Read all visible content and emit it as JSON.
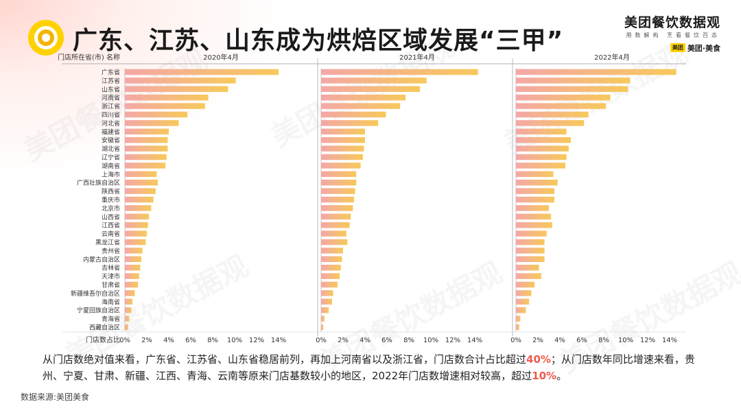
{
  "header": {
    "title": "广东、江苏、山东成为烘焙区域发展“三甲”",
    "brand_main": "美团餐饮数据观",
    "brand_sub": "用数解构 烹看餐饮百态",
    "brand_logo_badge": "美团",
    "brand_logo_text": "美团·美食"
  },
  "colors": {
    "bar_start": "#f4a7a7",
    "bar_end": "#f7c95b",
    "highlight": "#f05a4a",
    "icon_outer": "#ffd100",
    "icon_inner": "#f08a00"
  },
  "chart_data": {
    "type": "bar",
    "orientation": "horizontal",
    "y_header": "门店所在省(市) 名称",
    "x_header": "门店数占比",
    "categories": [
      "广东省",
      "江苏省",
      "山东省",
      "河南省",
      "浙江省",
      "四川省",
      "河北省",
      "福建省",
      "安徽省",
      "湖北省",
      "辽宁省",
      "湖南省",
      "上海市",
      "广西壮族自治区",
      "陕西省",
      "重庆市",
      "北京市",
      "山西省",
      "江西省",
      "云南省",
      "黑龙江省",
      "贵州省",
      "内蒙古自治区",
      "吉林省",
      "天津市",
      "甘肃省",
      "新疆维吾尔自治区",
      "海南省",
      "宁夏回族自治区",
      "青海省",
      "西藏自治区"
    ],
    "xlim": [
      0,
      15
    ],
    "ticks": [
      0,
      2,
      4,
      6,
      8,
      10,
      12,
      14
    ],
    "tick_labels": [
      "0%",
      "2%",
      "4%",
      "6%",
      "8%",
      "10%",
      "12%",
      "14%"
    ],
    "panels": [
      {
        "title": "2020年4月",
        "values": [
          14.0,
          10.1,
          9.4,
          7.6,
          7.3,
          5.7,
          4.9,
          4.0,
          3.9,
          3.9,
          3.8,
          3.7,
          2.9,
          3.0,
          2.8,
          2.6,
          2.4,
          2.2,
          2.1,
          2.0,
          1.9,
          1.6,
          1.5,
          1.4,
          1.3,
          1.2,
          0.9,
          0.7,
          0.6,
          0.4,
          0.3
        ]
      },
      {
        "title": "2021年4月",
        "values": [
          14.3,
          9.6,
          9.0,
          7.7,
          7.2,
          5.9,
          5.2,
          4.0,
          4.0,
          3.9,
          3.8,
          3.6,
          3.2,
          3.2,
          3.1,
          3.0,
          2.9,
          2.7,
          2.6,
          2.3,
          2.4,
          2.0,
          1.9,
          1.8,
          1.7,
          1.5,
          1.1,
          1.0,
          0.7,
          0.3,
          0.2
        ]
      },
      {
        "title": "2022年4月",
        "values": [
          14.6,
          10.4,
          10.2,
          8.6,
          8.2,
          6.6,
          6.2,
          4.6,
          5.0,
          4.8,
          4.6,
          4.5,
          3.4,
          3.8,
          3.5,
          3.5,
          3.0,
          3.2,
          3.3,
          2.8,
          2.6,
          2.6,
          2.6,
          2.1,
          2.3,
          1.7,
          1.4,
          1.2,
          0.9,
          0.4,
          0.3
        ]
      }
    ]
  },
  "description": {
    "p1": "从门店数绝对值来看，广东省、江苏省、山东省稳居前列，再加上河南省以及浙江省，门店数合计占比超过",
    "h1": "40%",
    "p2": "；从门店数年同比增速来看，贵州、宁夏、甘肃、新疆、江西、青海、云南等原来门店基数较小的地区，2022年门店数增速相对较高，超过",
    "h2": "10%",
    "p3": "。"
  },
  "source": "数据来源:美团美食",
  "watermark": "美团餐饮数据观"
}
